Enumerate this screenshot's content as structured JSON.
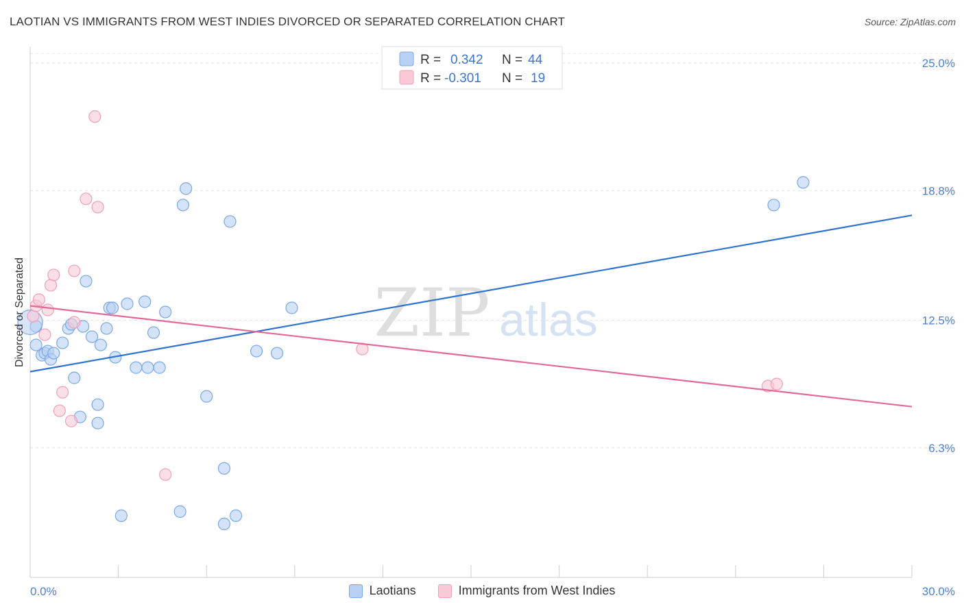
{
  "title": "LAOTIAN VS IMMIGRANTS FROM WEST INDIES DIVORCED OR SEPARATED CORRELATION CHART",
  "source": "Source: ZipAtlas.com",
  "watermark": {
    "zip": "ZIP",
    "atlas": "atlas"
  },
  "chart_data": {
    "type": "scatter",
    "title": "LAOTIAN VS IMMIGRANTS FROM WEST INDIES DIVORCED OR SEPARATED CORRELATION CHART",
    "xlabel": "",
    "ylabel": "Divorced or Separated",
    "xlim": [
      0.0,
      30.0
    ],
    "ylim": [
      0.0,
      26.0
    ],
    "x_tick_labels": [
      "0.0%",
      "30.0%"
    ],
    "y_ticks": [
      {
        "value": 25.0,
        "label": "25.0%"
      },
      {
        "value": 18.8,
        "label": "18.8%"
      },
      {
        "value": 12.5,
        "label": "12.5%"
      },
      {
        "value": 6.3,
        "label": "6.3%"
      }
    ],
    "grid": true,
    "legend_position": "top-center",
    "series": [
      {
        "name": "Laotians",
        "color": "#7aa7e6",
        "fill": "#b8d0f3",
        "line_color": "#2f72cf",
        "r_label": "R =",
        "r_value": "0.342",
        "n_label": "N =",
        "n_value": "44",
        "trend": {
          "x": [
            0.0,
            30.0
          ],
          "y": [
            10.0,
            17.6
          ]
        },
        "points": [
          [
            0.2,
            12.2
          ],
          [
            0.2,
            11.3
          ],
          [
            0.4,
            10.8
          ],
          [
            0.5,
            10.9
          ],
          [
            0.6,
            11.0
          ],
          [
            0.7,
            10.6
          ],
          [
            0.8,
            10.9
          ],
          [
            1.1,
            11.4
          ],
          [
            1.3,
            12.1
          ],
          [
            1.4,
            12.3
          ],
          [
            1.5,
            9.7
          ],
          [
            1.7,
            7.8
          ],
          [
            1.8,
            12.2
          ],
          [
            1.9,
            14.4
          ],
          [
            2.1,
            11.7
          ],
          [
            2.3,
            8.4
          ],
          [
            2.3,
            7.5
          ],
          [
            2.4,
            11.3
          ],
          [
            2.6,
            12.1
          ],
          [
            2.7,
            13.1
          ],
          [
            2.8,
            13.1
          ],
          [
            2.9,
            10.7
          ],
          [
            3.1,
            3.0
          ],
          [
            3.3,
            13.3
          ],
          [
            3.6,
            10.2
          ],
          [
            3.9,
            13.4
          ],
          [
            4.0,
            10.2
          ],
          [
            4.2,
            11.9
          ],
          [
            4.4,
            10.2
          ],
          [
            4.6,
            12.9
          ],
          [
            5.1,
            3.2
          ],
          [
            5.2,
            18.1
          ],
          [
            5.3,
            18.9
          ],
          [
            6.0,
            8.8
          ],
          [
            6.6,
            2.6
          ],
          [
            6.6,
            5.3
          ],
          [
            6.8,
            17.3
          ],
          [
            7.0,
            3.0
          ],
          [
            7.7,
            11.0
          ],
          [
            8.4,
            10.9
          ],
          [
            8.9,
            13.1
          ],
          [
            25.3,
            18.1
          ],
          [
            26.3,
            19.2
          ],
          [
            0.0,
            12.4
          ]
        ]
      },
      {
        "name": "Immigrants from West Indies",
        "color": "#f0a0b8",
        "fill": "#f9c9d7",
        "line_color": "#e3689a",
        "r_label": "R =",
        "r_value": "-0.301",
        "n_label": "N =",
        "n_value": "19",
        "trend": {
          "x": [
            0.0,
            30.0
          ],
          "y": [
            13.2,
            8.3
          ]
        },
        "points": [
          [
            0.1,
            12.7
          ],
          [
            0.2,
            13.2
          ],
          [
            0.3,
            13.5
          ],
          [
            0.5,
            11.8
          ],
          [
            0.6,
            13.0
          ],
          [
            0.7,
            14.2
          ],
          [
            0.8,
            14.7
          ],
          [
            1.0,
            8.1
          ],
          [
            1.1,
            9.0
          ],
          [
            1.4,
            7.6
          ],
          [
            1.5,
            12.4
          ],
          [
            1.5,
            14.9
          ],
          [
            1.9,
            18.4
          ],
          [
            2.2,
            22.4
          ],
          [
            2.3,
            18.0
          ],
          [
            4.6,
            5.0
          ],
          [
            11.3,
            11.1
          ],
          [
            25.1,
            9.3
          ],
          [
            25.4,
            9.4
          ]
        ]
      }
    ]
  }
}
